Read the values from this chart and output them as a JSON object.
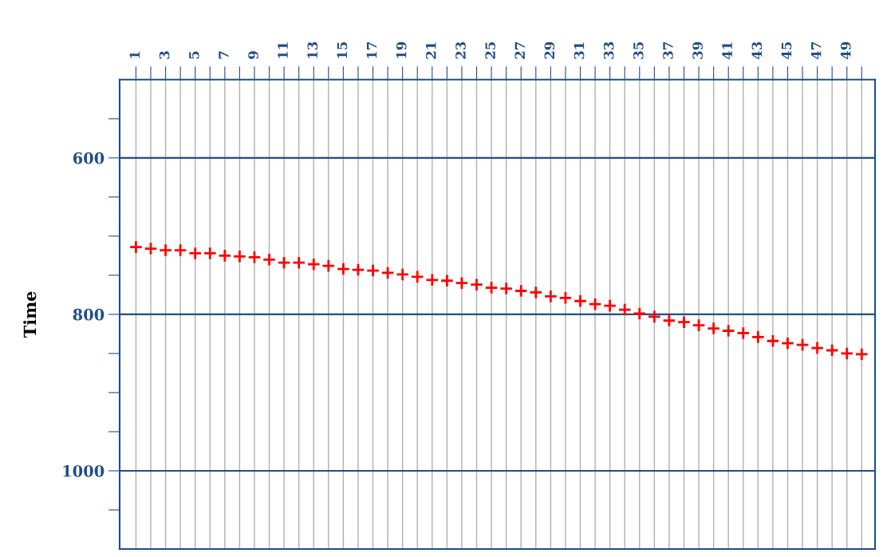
{
  "chart_data": {
    "type": "scatter",
    "ylabel": "Time",
    "marker": "cross",
    "grid": "x",
    "x": [
      1,
      2,
      3,
      4,
      5,
      6,
      7,
      8,
      9,
      10,
      11,
      12,
      13,
      14,
      15,
      16,
      17,
      18,
      19,
      20,
      21,
      22,
      23,
      24,
      25,
      26,
      27,
      28,
      29,
      30,
      31,
      32,
      33,
      34,
      35,
      36,
      37,
      38,
      39,
      40,
      41,
      42,
      43,
      44,
      45,
      46,
      47,
      48,
      49,
      50
    ],
    "series": [
      {
        "color": "#ff0000",
        "values": [
          714,
          716,
          718,
          718,
          722,
          722,
          725,
          726,
          727,
          730,
          734,
          734,
          736,
          738,
          742,
          743,
          744,
          747,
          749,
          752,
          756,
          757,
          760,
          762,
          766,
          767,
          770,
          772,
          777,
          779,
          783,
          787,
          789,
          794,
          799,
          803,
          808,
          810,
          814,
          818,
          821,
          824,
          829,
          834,
          837,
          839,
          843,
          846,
          850,
          851
        ]
      }
    ],
    "xlim": [
      -0.1,
      50.9
    ],
    "xticks": [
      1,
      {
        "value": 2,
        "label": null
      },
      3,
      {
        "value": 4,
        "label": null
      },
      5,
      {
        "value": 6,
        "label": null
      },
      7,
      {
        "value": 8,
        "label": null
      },
      9,
      {
        "value": 10,
        "label": null
      },
      11,
      {
        "value": 12,
        "label": null
      },
      13,
      {
        "value": 14,
        "label": null
      },
      15,
      {
        "value": 16,
        "label": null
      },
      17,
      {
        "value": 18,
        "label": null
      },
      19,
      {
        "value": 20,
        "label": null
      },
      21,
      {
        "value": 22,
        "label": null
      },
      23,
      {
        "value": 24,
        "label": null
      },
      25,
      {
        "value": 26,
        "label": null
      },
      27,
      {
        "value": 28,
        "label": null
      },
      29,
      {
        "value": 30,
        "label": null
      },
      31,
      {
        "value": 32,
        "label": null
      },
      33,
      {
        "value": 34,
        "label": null
      },
      35,
      {
        "value": 36,
        "label": null
      },
      37,
      {
        "value": 38,
        "label": null
      },
      39,
      {
        "value": 40,
        "label": null
      },
      41,
      {
        "value": 42,
        "label": null
      },
      43,
      {
        "value": 44,
        "label": null
      },
      45,
      {
        "value": 46,
        "label": null
      },
      47,
      {
        "value": 48,
        "label": null
      },
      49,
      {
        "value": 50,
        "label": null
      }
    ],
    "ylim": [
      1100,
      500
    ],
    "yticks": [
      {
        "value": 550,
        "label": null
      },
      600,
      {
        "value": 650,
        "label": null
      },
      {
        "value": 700,
        "label": null
      },
      {
        "value": 750,
        "label": null
      },
      800,
      {
        "value": 850,
        "label": null
      },
      {
        "value": 900,
        "label": null
      },
      {
        "value": 950,
        "label": null
      },
      1000,
      {
        "value": 1050,
        "label": null
      }
    ],
    "ref_lines": [
      {
        "axis": "y",
        "value": 600,
        "color": "#1f4e8c"
      },
      {
        "axis": "y",
        "value": 800,
        "color": "#1f4e8c"
      },
      {
        "axis": "y",
        "value": 1000,
        "color": "#1f4e8c"
      }
    ]
  }
}
